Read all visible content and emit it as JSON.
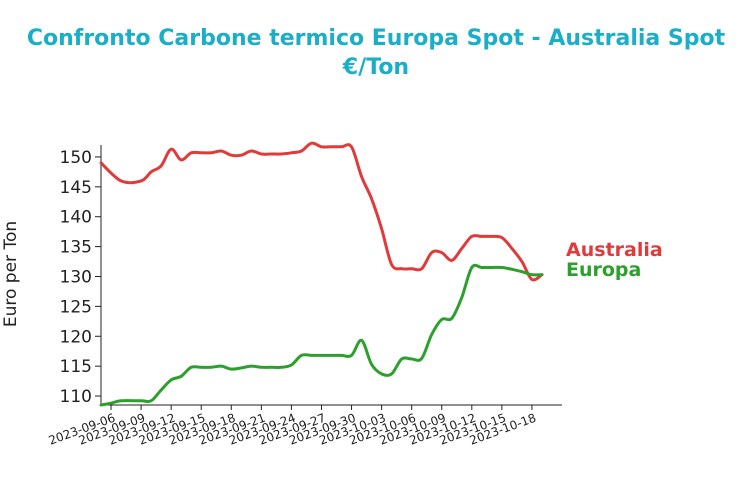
{
  "chart_data": {
    "type": "line",
    "title_line1": "Confronto Carbone termico Europa Spot - Australia Spot",
    "title_line2": "€/Ton",
    "xlabel": "",
    "ylabel": "Euro per Ton",
    "ylim": [
      108.5,
      152
    ],
    "xlim": [
      "2023-09-05",
      "2023-10-21"
    ],
    "yticks": [
      110,
      115,
      120,
      125,
      130,
      135,
      140,
      145,
      150
    ],
    "xticks": [
      "2023-09-06",
      "2023-09-09",
      "2023-09-12",
      "2023-09-15",
      "2023-09-18",
      "2023-09-21",
      "2023-09-24",
      "2023-09-27",
      "2023-09-30",
      "2023-10-03",
      "2023-10-06",
      "2023-10-09",
      "2023-10-12",
      "2023-10-15",
      "2023-10-18"
    ],
    "legend_position": "right, labels at line ends",
    "grid": false,
    "series": [
      {
        "name": "Australia",
        "color": "#E03A3A",
        "x": [
          "2023-09-05",
          "2023-09-07",
          "2023-09-09",
          "2023-09-10",
          "2023-09-11",
          "2023-09-12",
          "2023-09-13",
          "2023-09-14",
          "2023-09-15",
          "2023-09-16",
          "2023-09-17",
          "2023-09-18",
          "2023-09-19",
          "2023-09-20",
          "2023-09-21",
          "2023-09-22",
          "2023-09-23",
          "2023-09-24",
          "2023-09-25",
          "2023-09-26",
          "2023-09-27",
          "2023-09-28",
          "2023-09-29",
          "2023-09-30",
          "2023-10-01",
          "2023-10-02",
          "2023-10-03",
          "2023-10-04",
          "2023-10-05",
          "2023-10-06",
          "2023-10-07",
          "2023-10-08",
          "2023-10-09",
          "2023-10-10",
          "2023-10-11",
          "2023-10-12",
          "2023-10-13",
          "2023-10-14",
          "2023-10-15",
          "2023-10-16",
          "2023-10-17",
          "2023-10-18",
          "2023-10-19"
        ],
        "y": [
          149,
          146,
          146,
          147.5,
          148.5,
          151.3,
          149.5,
          150.7,
          150.7,
          150.7,
          151,
          150.3,
          150.3,
          151,
          150.5,
          150.5,
          150.5,
          150.7,
          151,
          152.3,
          151.7,
          151.7,
          151.7,
          151.7,
          146.7,
          143,
          138,
          132,
          131.3,
          131.3,
          131.3,
          134,
          134,
          132.7,
          134.7,
          136.7,
          136.7,
          136.7,
          136.5,
          134.7,
          132.5,
          129.5,
          130.3
        ]
      },
      {
        "name": "Europa",
        "color": "#2CA02C",
        "x": [
          "2023-09-05",
          "2023-09-06",
          "2023-09-07",
          "2023-09-09",
          "2023-09-10",
          "2023-09-11",
          "2023-09-12",
          "2023-09-13",
          "2023-09-14",
          "2023-09-15",
          "2023-09-16",
          "2023-09-17",
          "2023-09-18",
          "2023-09-19",
          "2023-09-20",
          "2023-09-21",
          "2023-09-22",
          "2023-09-23",
          "2023-09-24",
          "2023-09-25",
          "2023-09-26",
          "2023-09-27",
          "2023-09-28",
          "2023-09-29",
          "2023-09-30",
          "2023-10-01",
          "2023-10-02",
          "2023-10-03",
          "2023-10-04",
          "2023-10-05",
          "2023-10-06",
          "2023-10-07",
          "2023-10-08",
          "2023-10-09",
          "2023-10-10",
          "2023-10-11",
          "2023-10-12",
          "2023-10-13",
          "2023-10-14",
          "2023-10-15",
          "2023-10-16",
          "2023-10-17",
          "2023-10-18",
          "2023-10-19"
        ],
        "y": [
          108.5,
          108.8,
          109.2,
          109.2,
          109.2,
          111,
          112.7,
          113.3,
          114.8,
          114.8,
          114.8,
          115,
          114.5,
          114.7,
          115,
          114.8,
          114.8,
          114.8,
          115.2,
          116.8,
          116.8,
          116.8,
          116.8,
          116.8,
          116.8,
          119.3,
          115.3,
          113.7,
          113.7,
          116.2,
          116.2,
          116.3,
          120.3,
          122.8,
          123,
          126.5,
          131.5,
          131.5,
          131.5,
          131.5,
          131.2,
          130.8,
          130.3,
          130.3
        ]
      }
    ]
  }
}
